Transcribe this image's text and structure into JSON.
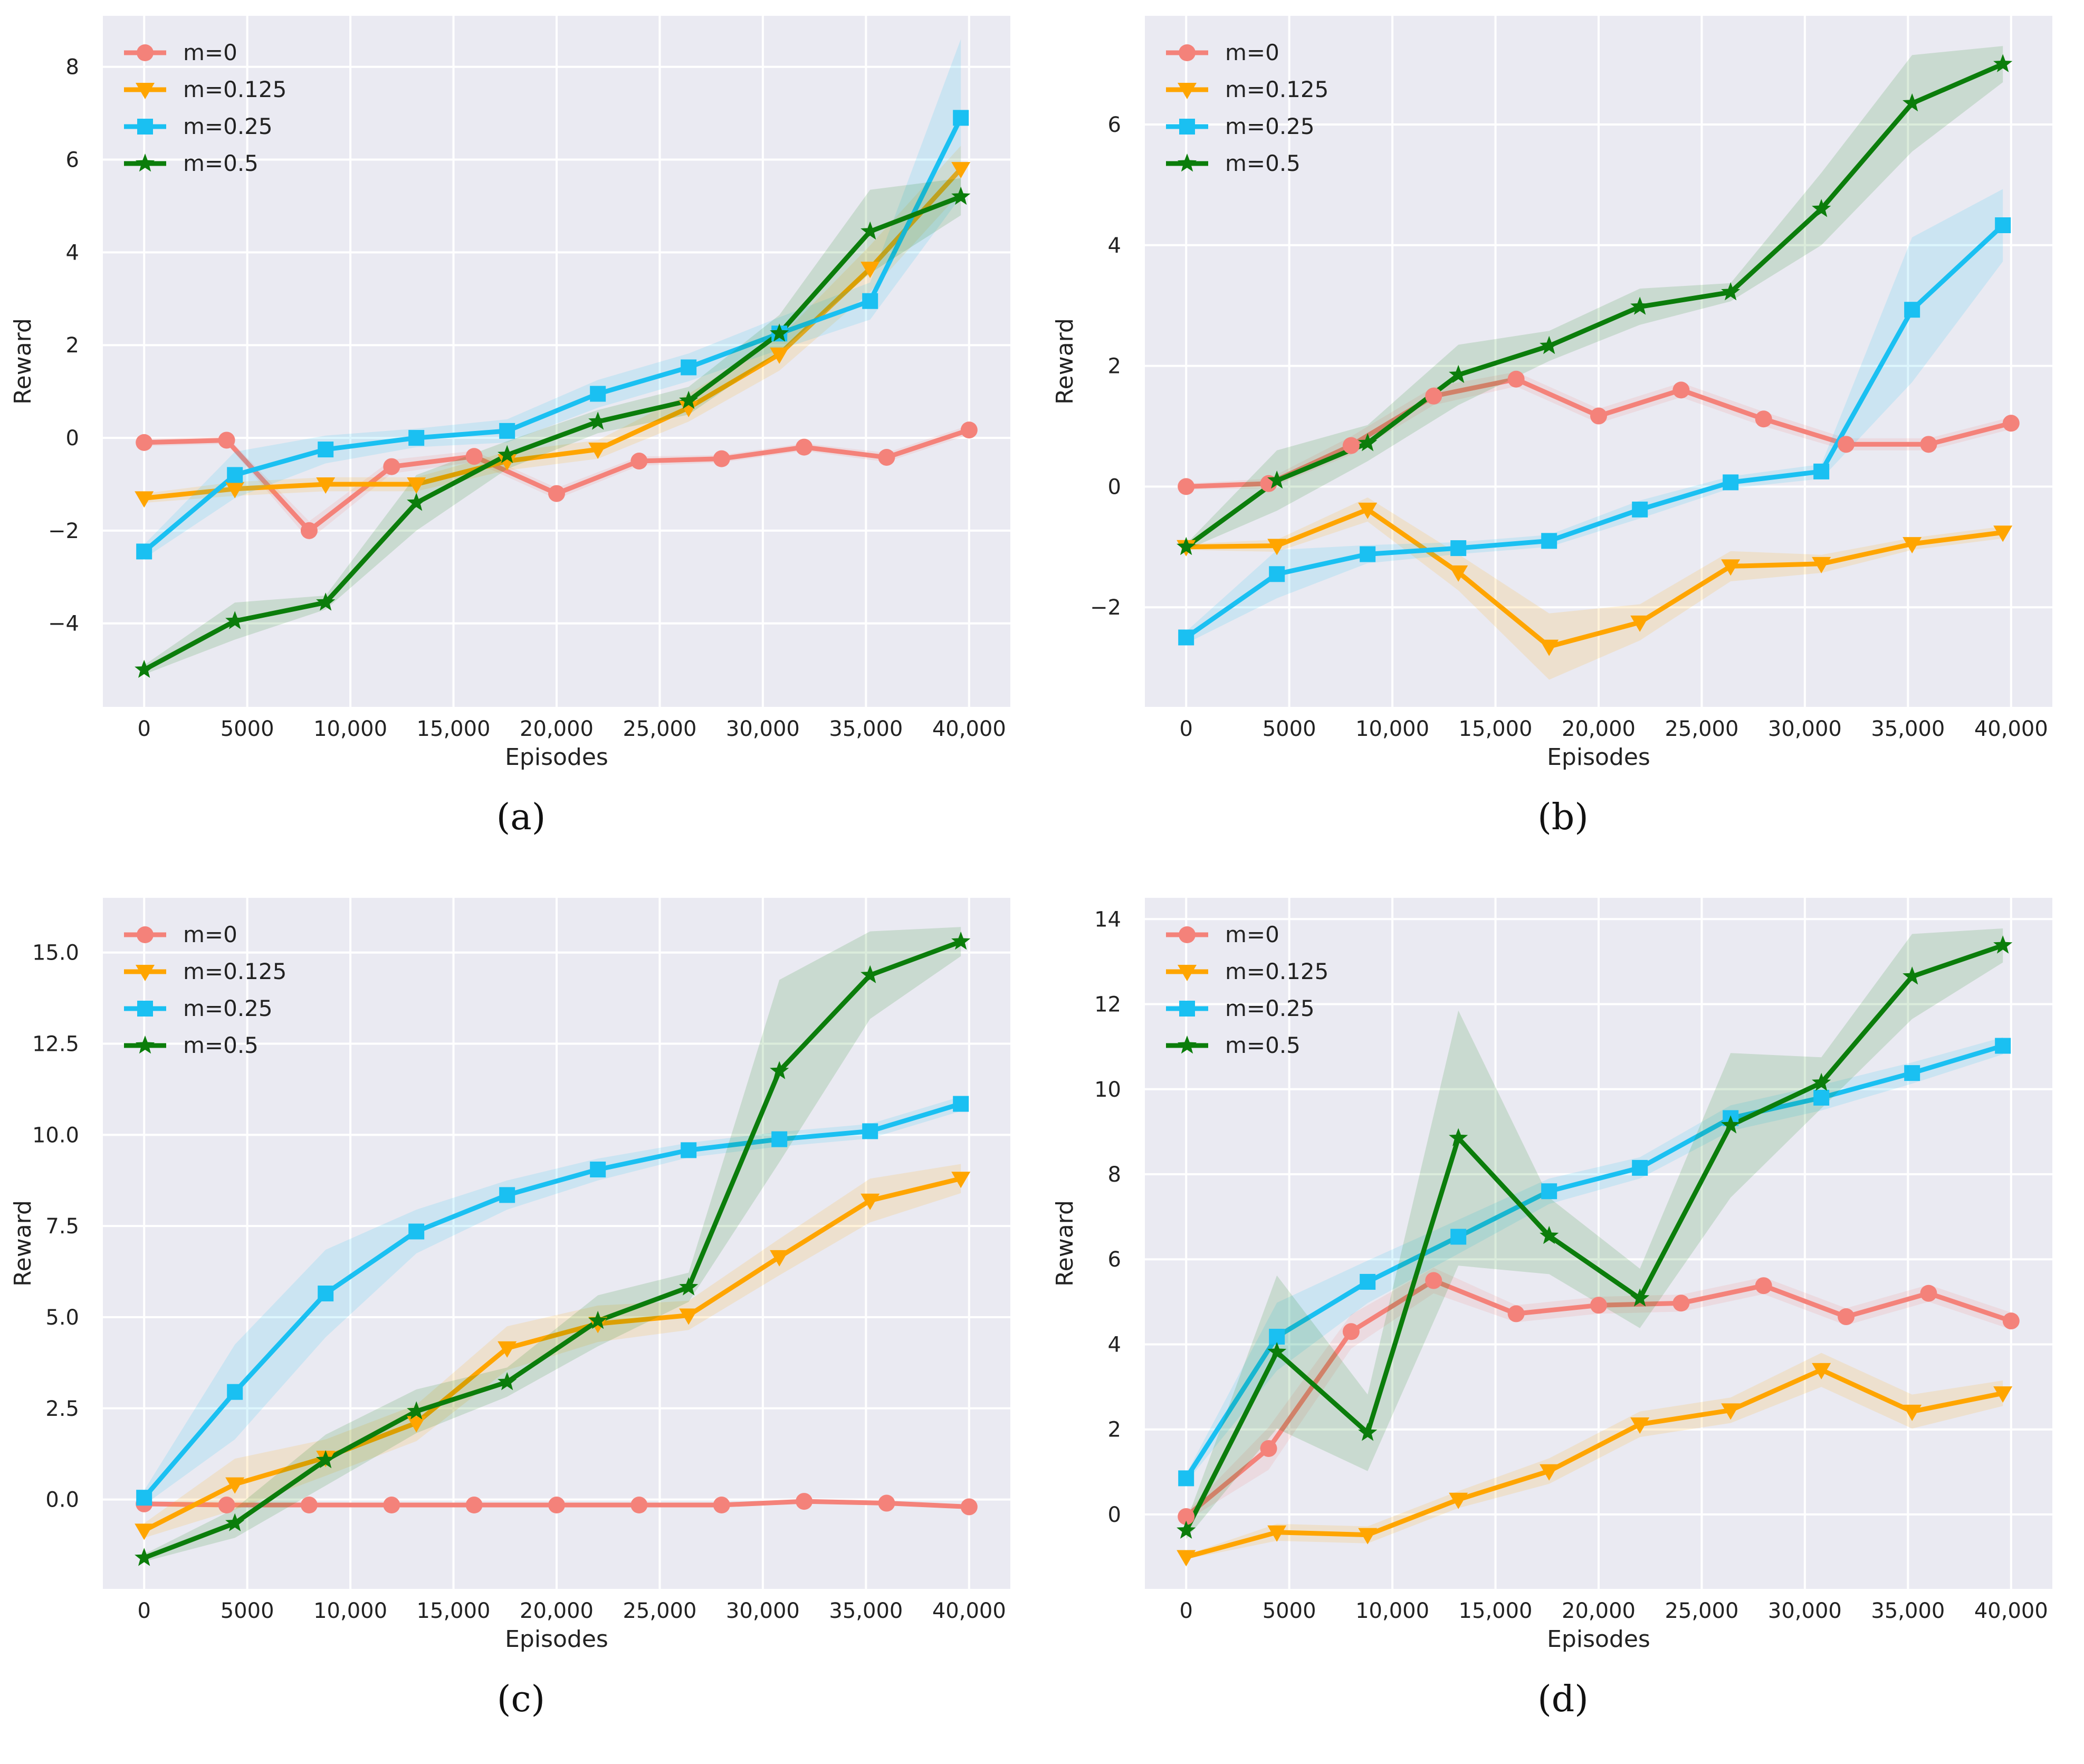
{
  "chart_data": [
    {
      "type": "line",
      "panel_label": "(a)",
      "xlabel": "Episodes",
      "ylabel": "Reward",
      "xlim": [
        -2000,
        42000
      ],
      "ylim": [
        -5.8,
        9.1
      ],
      "xticks": [
        0,
        5000,
        10000,
        15000,
        20000,
        25000,
        30000,
        35000,
        40000
      ],
      "xtick_labels": [
        "0",
        "5000",
        "10,000",
        "15,000",
        "20,000",
        "25,000",
        "30,000",
        "35,000",
        "40,000"
      ],
      "yticks": [
        -4,
        -2,
        0,
        2,
        4,
        6,
        8
      ],
      "ytick_labels": [
        "−4",
        "−2",
        "0",
        "2",
        "4",
        "6",
        "8"
      ],
      "legend_position": "top-left",
      "series": [
        {
          "name": "m=0",
          "color": "#f4827a",
          "marker": "circle",
          "x": [
            0,
            4000,
            8000,
            12000,
            16000,
            20000,
            24000,
            28000,
            32000,
            36000,
            40000
          ],
          "y": [
            -0.1,
            -0.05,
            -2.0,
            -0.62,
            -0.4,
            -1.2,
            -0.5,
            -0.45,
            -0.2,
            -0.42,
            0.17
          ],
          "band": [
            0.08,
            0.08,
            0.2,
            0.15,
            0.12,
            0.12,
            0.1,
            0.08,
            0.08,
            0.1,
            0.1
          ]
        },
        {
          "name": "m=0.125",
          "color": "#ffa500",
          "marker": "triangle-down",
          "x": [
            0,
            4400,
            8800,
            13200,
            17600,
            22000,
            26400,
            30800,
            35200,
            39600
          ],
          "y": [
            -1.3,
            -1.1,
            -1.0,
            -1.0,
            -0.5,
            -0.25,
            0.65,
            1.8,
            3.65,
            5.8
          ],
          "band": [
            0.1,
            0.15,
            0.15,
            0.15,
            0.2,
            0.2,
            0.3,
            0.35,
            0.5,
            0.5
          ]
        },
        {
          "name": "m=0.25",
          "color": "#1ac0f2",
          "marker": "square",
          "x": [
            0,
            4400,
            8800,
            13200,
            17600,
            22000,
            26400,
            30800,
            35200,
            39600
          ],
          "y": [
            -2.45,
            -0.8,
            -0.25,
            0.0,
            0.15,
            0.95,
            1.52,
            2.25,
            2.95,
            6.9
          ],
          "band": [
            0.15,
            0.5,
            0.3,
            0.2,
            0.25,
            0.3,
            0.3,
            0.35,
            0.4,
            1.7
          ]
        },
        {
          "name": "m=0.5",
          "color": "#0b7d0b",
          "marker": "star",
          "x": [
            0,
            4400,
            8800,
            13200,
            17600,
            22000,
            26400,
            30800,
            35200,
            39600
          ],
          "y": [
            -5.0,
            -3.95,
            -3.55,
            -1.4,
            -0.37,
            0.35,
            0.8,
            2.25,
            4.45,
            5.2
          ],
          "band": [
            0.1,
            0.4,
            0.15,
            0.6,
            0.3,
            0.25,
            0.3,
            0.4,
            0.9,
            0.4
          ]
        }
      ]
    },
    {
      "type": "line",
      "panel_label": "(b)",
      "xlabel": "Episodes",
      "ylabel": "Reward",
      "xlim": [
        -2000,
        42000
      ],
      "ylim": [
        -3.65,
        7.8
      ],
      "xticks": [
        0,
        5000,
        10000,
        15000,
        20000,
        25000,
        30000,
        35000,
        40000
      ],
      "xtick_labels": [
        "0",
        "5000",
        "10,000",
        "15,000",
        "20,000",
        "25,000",
        "30,000",
        "35,000",
        "40,000"
      ],
      "yticks": [
        -2,
        0,
        2,
        4,
        6
      ],
      "ytick_labels": [
        "−2",
        "0",
        "2",
        "4",
        "6"
      ],
      "legend_position": "top-left",
      "series": [
        {
          "name": "m=0",
          "color": "#f4827a",
          "marker": "circle",
          "x": [
            0,
            4000,
            8000,
            12000,
            16000,
            20000,
            24000,
            28000,
            32000,
            36000,
            40000
          ],
          "y": [
            0.0,
            0.05,
            0.68,
            1.5,
            1.78,
            1.17,
            1.6,
            1.12,
            0.7,
            0.7,
            1.05
          ],
          "band": [
            0.05,
            0.08,
            0.15,
            0.15,
            0.12,
            0.12,
            0.12,
            0.12,
            0.1,
            0.1,
            0.1
          ]
        },
        {
          "name": "m=0.125",
          "color": "#ffa500",
          "marker": "triangle-down",
          "x": [
            0,
            4400,
            8800,
            13200,
            17600,
            22000,
            26400,
            30800,
            35200,
            39600
          ],
          "y": [
            -1.0,
            -0.98,
            -0.38,
            -1.42,
            -2.65,
            -2.25,
            -1.32,
            -1.28,
            -0.95,
            -0.76
          ],
          "band": [
            0.05,
            0.1,
            0.2,
            0.3,
            0.55,
            0.3,
            0.25,
            0.15,
            0.1,
            0.1
          ]
        },
        {
          "name": "m=0.25",
          "color": "#1ac0f2",
          "marker": "square",
          "x": [
            0,
            4400,
            8800,
            13200,
            17600,
            22000,
            26400,
            30800,
            35200,
            39600
          ],
          "y": [
            -2.5,
            -1.45,
            -1.12,
            -1.02,
            -0.9,
            -0.38,
            0.07,
            0.25,
            2.93,
            4.33
          ],
          "band": [
            0.1,
            0.4,
            0.15,
            0.1,
            0.1,
            0.15,
            0.1,
            0.12,
            1.2,
            0.6
          ]
        },
        {
          "name": "m=0.5",
          "color": "#0b7d0b",
          "marker": "star",
          "x": [
            0,
            4400,
            8800,
            13200,
            17600,
            22000,
            26400,
            30800,
            35200,
            39600
          ],
          "y": [
            -1.0,
            0.1,
            0.72,
            1.85,
            2.33,
            2.98,
            3.22,
            4.6,
            6.35,
            7.0
          ],
          "band": [
            0.05,
            0.5,
            0.3,
            0.5,
            0.25,
            0.3,
            0.15,
            0.6,
            0.8,
            0.3
          ]
        }
      ]
    },
    {
      "type": "line",
      "panel_label": "(c)",
      "xlabel": "Episodes",
      "ylabel": "Reward",
      "xlim": [
        -2000,
        42000
      ],
      "ylim": [
        -2.45,
        16.5
      ],
      "xticks": [
        0,
        5000,
        10000,
        15000,
        20000,
        25000,
        30000,
        35000,
        40000
      ],
      "xtick_labels": [
        "0",
        "5000",
        "10,000",
        "15,000",
        "20,000",
        "25,000",
        "30,000",
        "35,000",
        "40,000"
      ],
      "yticks": [
        0,
        2.5,
        5,
        7.5,
        10,
        12.5,
        15
      ],
      "ytick_labels": [
        "0.0",
        "2.5",
        "5.0",
        "7.5",
        "10.0",
        "12.5",
        "15.0"
      ],
      "legend_position": "top-left",
      "series": [
        {
          "name": "m=0",
          "color": "#f4827a",
          "marker": "circle",
          "x": [
            0,
            4000,
            8000,
            12000,
            16000,
            20000,
            24000,
            28000,
            32000,
            36000,
            40000
          ],
          "y": [
            -0.12,
            -0.15,
            -0.15,
            -0.15,
            -0.15,
            -0.15,
            -0.15,
            -0.15,
            -0.05,
            -0.1,
            -0.2
          ],
          "band": [
            0.05,
            0.05,
            0.05,
            0.05,
            0.05,
            0.05,
            0.05,
            0.05,
            0.05,
            0.05,
            0.05
          ]
        },
        {
          "name": "m=0.125",
          "color": "#ffa500",
          "marker": "triangle-down",
          "x": [
            0,
            4400,
            8800,
            13200,
            17600,
            22000,
            26400,
            30800,
            35200,
            39600
          ],
          "y": [
            -0.85,
            0.42,
            1.15,
            2.1,
            4.15,
            4.82,
            5.05,
            6.65,
            8.2,
            8.8
          ],
          "band": [
            0.2,
            0.7,
            0.5,
            0.5,
            0.6,
            0.5,
            0.4,
            0.5,
            0.6,
            0.4
          ]
        },
        {
          "name": "m=0.25",
          "color": "#1ac0f2",
          "marker": "square",
          "x": [
            0,
            4400,
            8800,
            13200,
            17600,
            22000,
            26400,
            30800,
            35200,
            39600
          ],
          "y": [
            0.05,
            2.95,
            5.65,
            7.35,
            8.35,
            9.05,
            9.58,
            9.88,
            10.1,
            10.85
          ],
          "band": [
            0.2,
            1.3,
            1.2,
            0.6,
            0.4,
            0.3,
            0.2,
            0.2,
            0.2,
            0.2
          ]
        },
        {
          "name": "m=0.5",
          "color": "#0b7d0b",
          "marker": "star",
          "x": [
            0,
            4400,
            8800,
            13200,
            17600,
            22000,
            26400,
            30800,
            35200,
            39600
          ],
          "y": [
            -1.6,
            -0.65,
            1.08,
            2.42,
            3.22,
            4.9,
            5.82,
            11.75,
            14.38,
            15.3
          ],
          "band": [
            0.1,
            0.4,
            0.7,
            0.6,
            0.4,
            0.7,
            0.4,
            2.5,
            1.2,
            0.4
          ]
        }
      ]
    },
    {
      "type": "line",
      "panel_label": "(d)",
      "xlabel": "Episodes",
      "ylabel": "Reward",
      "xlim": [
        -2000,
        42000
      ],
      "ylim": [
        -1.75,
        14.5
      ],
      "xticks": [
        0,
        5000,
        10000,
        15000,
        20000,
        25000,
        30000,
        35000,
        40000
      ],
      "xtick_labels": [
        "0",
        "5000",
        "10,000",
        "15,000",
        "20,000",
        "25,000",
        "30,000",
        "35,000",
        "40,000"
      ],
      "yticks": [
        0,
        2,
        4,
        6,
        8,
        10,
        12,
        14
      ],
      "ytick_labels": [
        "0",
        "2",
        "4",
        "6",
        "8",
        "10",
        "12",
        "14"
      ],
      "legend_position": "top-left",
      "series": [
        {
          "name": "m=0",
          "color": "#f4827a",
          "marker": "circle",
          "x": [
            0,
            4000,
            8000,
            12000,
            16000,
            20000,
            24000,
            28000,
            32000,
            36000,
            40000
          ],
          "y": [
            -0.05,
            1.55,
            4.3,
            5.5,
            4.72,
            4.92,
            4.97,
            5.38,
            4.65,
            5.2,
            4.55
          ],
          "band": [
            0.1,
            0.5,
            0.4,
            0.3,
            0.2,
            0.2,
            0.2,
            0.2,
            0.2,
            0.2,
            0.2
          ]
        },
        {
          "name": "m=0.125",
          "color": "#ffa500",
          "marker": "triangle-down",
          "x": [
            0,
            4400,
            8800,
            13200,
            17600,
            22000,
            26400,
            30800,
            35200,
            39600
          ],
          "y": [
            -1.0,
            -0.42,
            -0.48,
            0.35,
            1.02,
            2.12,
            2.45,
            3.4,
            2.42,
            2.85
          ],
          "band": [
            0.05,
            0.2,
            0.2,
            0.2,
            0.3,
            0.3,
            0.3,
            0.4,
            0.4,
            0.3
          ]
        },
        {
          "name": "m=0.25",
          "color": "#1ac0f2",
          "marker": "square",
          "x": [
            0,
            4400,
            8800,
            13200,
            17600,
            22000,
            26400,
            30800,
            35200,
            39600
          ],
          "y": [
            0.85,
            4.18,
            5.47,
            6.53,
            7.6,
            8.15,
            9.32,
            9.8,
            10.38,
            11.02
          ],
          "band": [
            0.1,
            0.8,
            0.5,
            0.4,
            0.3,
            0.25,
            0.3,
            0.3,
            0.25,
            0.2
          ]
        },
        {
          "name": "m=0.5",
          "color": "#0b7d0b",
          "marker": "star",
          "x": [
            0,
            4400,
            8800,
            13200,
            17600,
            22000,
            26400,
            30800,
            35200,
            39600
          ],
          "y": [
            -0.38,
            3.82,
            1.92,
            8.85,
            6.55,
            5.08,
            9.15,
            10.15,
            12.65,
            13.38
          ],
          "band": [
            0.2,
            1.8,
            0.9,
            3.0,
            0.9,
            0.7,
            1.7,
            0.6,
            1.0,
            0.4
          ]
        }
      ]
    }
  ]
}
